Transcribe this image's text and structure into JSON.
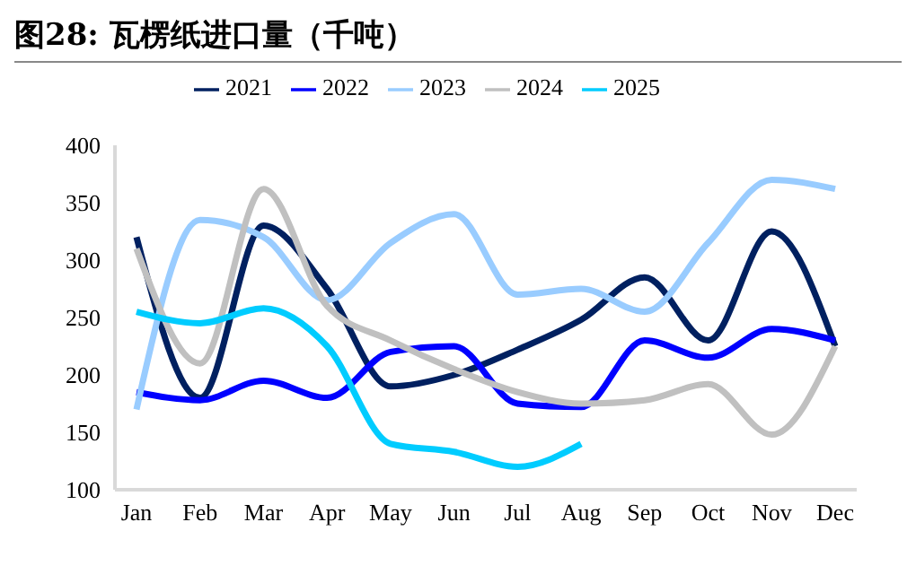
{
  "chart_data": {
    "type": "line",
    "title": "图28:  瓦楞纸进口量（千吨）",
    "categories": [
      "Jan",
      "Feb",
      "Mar",
      "Apr",
      "May",
      "Jun",
      "Jul",
      "Aug",
      "Sep",
      "Oct",
      "Nov",
      "Dec"
    ],
    "series": [
      {
        "name": "2021",
        "color": "#002060",
        "values": [
          320,
          180,
          330,
          275,
          190,
          200,
          222,
          248,
          285,
          230,
          325,
          225
        ]
      },
      {
        "name": "2022",
        "color": "#0000ff",
        "values": [
          185,
          178,
          195,
          180,
          220,
          225,
          175,
          172,
          230,
          215,
          240,
          230
        ]
      },
      {
        "name": "2023",
        "color": "#99ccff",
        "values": [
          170,
          335,
          320,
          265,
          315,
          340,
          270,
          275,
          255,
          315,
          370,
          362
        ]
      },
      {
        "name": "2024",
        "color": "#c0c0c0",
        "values": [
          310,
          210,
          362,
          260,
          230,
          205,
          185,
          175,
          178,
          192,
          148,
          225
        ]
      },
      {
        "name": "2025",
        "color": "#00ccff",
        "values": [
          255,
          245,
          258,
          225,
          140,
          133,
          120,
          140,
          null,
          null,
          null,
          null
        ]
      }
    ],
    "ylim": [
      100,
      400
    ],
    "yticks": [
      100,
      150,
      200,
      250,
      300,
      350,
      400
    ],
    "grid": false,
    "legend": "top",
    "marker": "none",
    "line_style": "solid"
  }
}
